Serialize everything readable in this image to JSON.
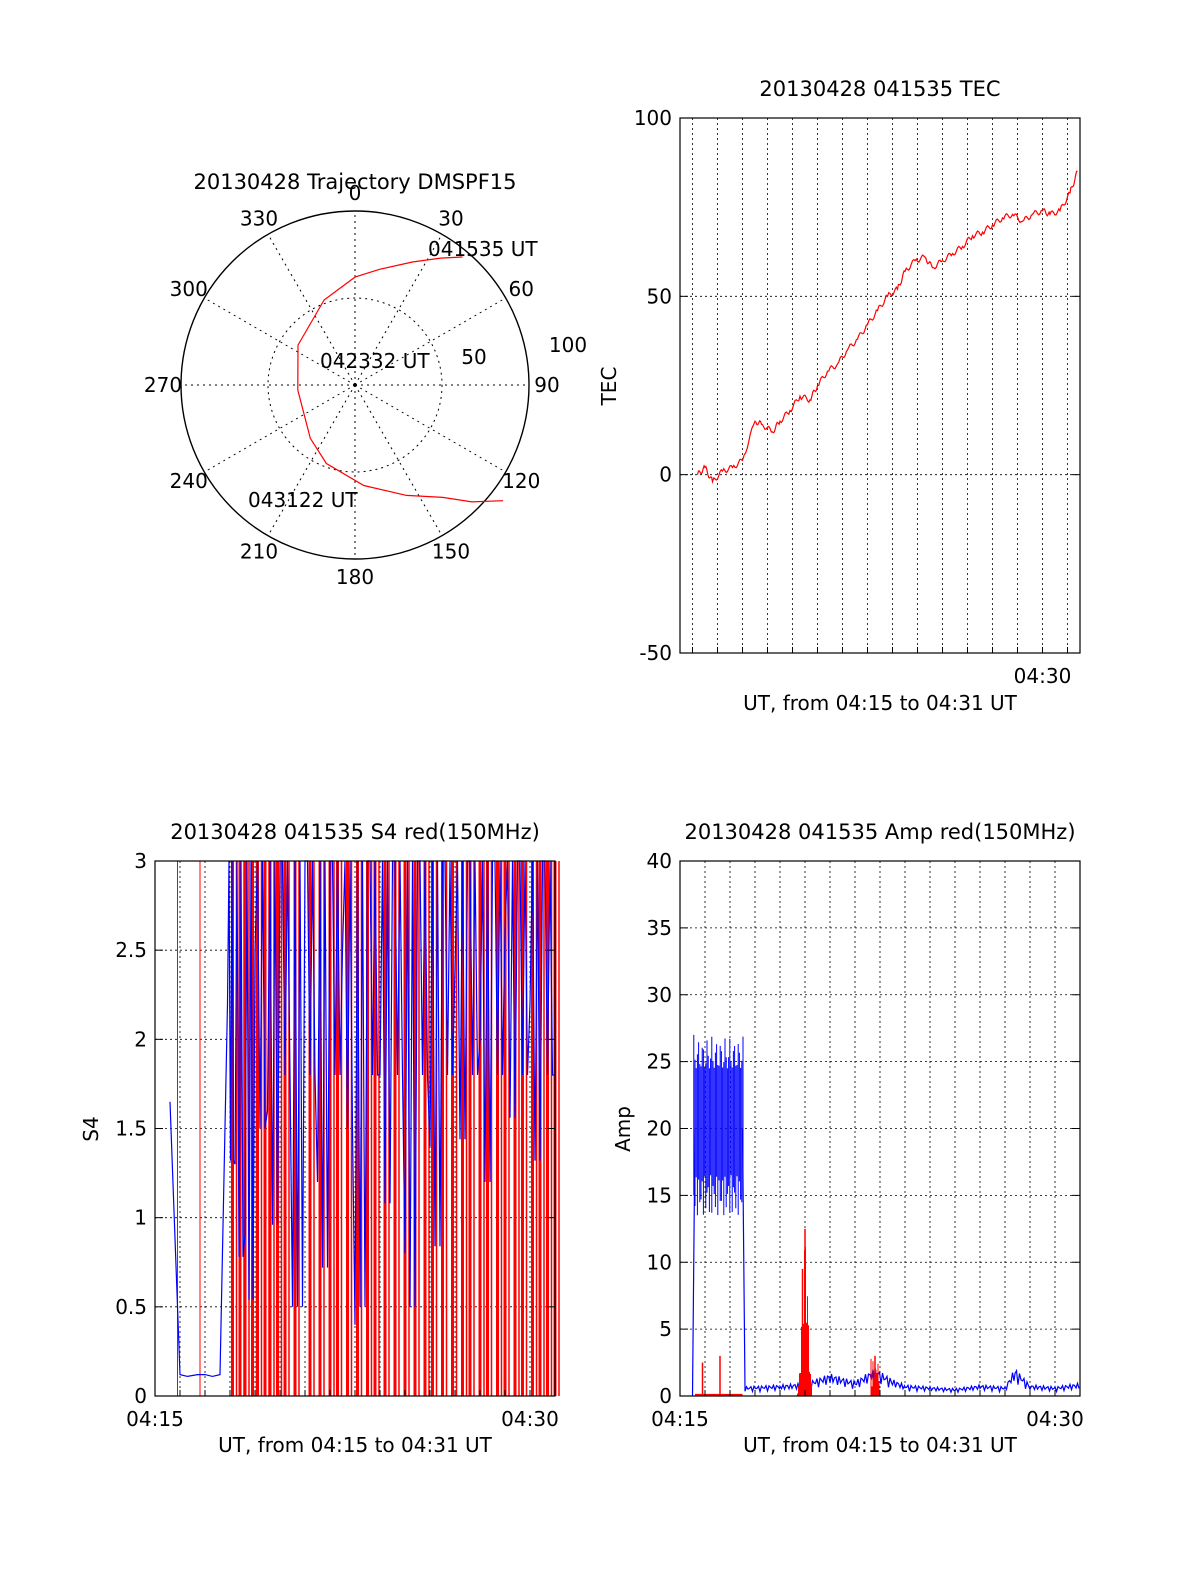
{
  "colors": {
    "primary_series": "#ff0000",
    "secondary_series": "#0000ff",
    "grid": "#000000",
    "background": "#ffffff"
  },
  "chart_data": [
    {
      "type": "polar",
      "title": "20130428 Trajectory DMSPF15",
      "angular_ticks": [
        "0",
        "30",
        "60",
        "90",
        "120",
        "150",
        "180",
        "210",
        "240",
        "270",
        "300",
        "330"
      ],
      "radial_ticks": [
        "50",
        "100"
      ],
      "rlim": [
        0,
        100
      ],
      "trajectory": {
        "azimuth_deg": [
          40,
          34,
          25,
          12,
          0,
          -20,
          -55,
          -95,
          -140,
          -160,
          -185,
          -205,
          -218,
          -225,
          -232
        ],
        "zenith_deg": [
          96,
          88,
          78,
          68,
          62,
          52,
          40,
          33,
          40,
          48,
          58,
          70,
          82,
          95,
          108
        ]
      },
      "annotations": [
        "041535 UT",
        "042332 UT",
        "043122 UT"
      ],
      "grid": true
    },
    {
      "type": "line",
      "title": "20130428 041535 TEC",
      "xlabel": "UT, from 04:15 to 04:31 UT",
      "ylabel": "TEC",
      "xlim_min": [
        15.5,
        31.5
      ],
      "ylim": [
        -50,
        100
      ],
      "yticks": [
        "-50",
        "0",
        "50",
        "100"
      ],
      "xtick_labels": [
        {
          "minute": 30,
          "label": "04:30"
        }
      ],
      "grid": true,
      "series": [
        {
          "x_min": [
            16.2,
            16.5,
            16.8,
            17.2,
            17.6,
            18.0,
            18.5,
            18.8,
            19.2,
            19.5,
            19.9,
            20.3,
            20.7,
            21.0,
            21.4,
            21.8,
            22.2,
            22.6,
            23.0,
            23.4,
            23.8,
            24.2,
            24.5,
            24.9,
            25.3,
            25.6,
            26.0,
            26.4,
            26.8,
            27.2,
            27.6,
            28.0,
            28.4,
            28.8,
            29.2,
            29.6,
            30.0,
            30.3,
            30.7,
            31.1,
            31.4
          ],
          "y": [
            0,
            2,
            -2,
            1,
            2,
            4,
            15,
            14,
            12,
            15,
            18,
            22,
            21,
            25,
            29,
            31,
            35,
            38,
            42,
            46,
            50,
            52,
            57,
            60,
            61,
            58,
            60,
            62,
            64,
            67,
            68,
            70,
            72,
            73,
            71,
            73,
            74,
            73,
            74,
            79,
            85
          ]
        }
      ]
    },
    {
      "type": "line",
      "title": "20130428 041535 S4 red(150MHz)",
      "xlabel": "UT, from 04:15 to 04:31 UT",
      "ylabel": "S4",
      "xlim_min": [
        15,
        31
      ],
      "ylim": [
        0,
        3
      ],
      "yticks": [
        "0",
        "0.5",
        "1",
        "1.5",
        "2",
        "2.5",
        "3"
      ],
      "xtick_labels": [
        {
          "minute": 15,
          "label": "04:15"
        },
        {
          "minute": 30,
          "label": "04:30"
        }
      ],
      "grid": true,
      "series": [
        {
          "x_min": [
            15.6,
            16.0,
            16.3,
            16.7,
            17.0,
            17.3,
            17.6,
            17.9,
            18.2,
            18.6,
            19.0,
            19.5,
            20.0,
            20.5,
            21.0,
            21.5,
            22.0,
            22.5,
            23.0,
            23.5,
            24.0,
            24.5,
            25.0,
            25.5,
            26.0,
            26.5,
            27.0,
            27.5,
            28.0,
            28.5,
            29.0,
            29.5,
            30.0,
            30.5,
            31.0
          ],
          "y": [
            1.65,
            0.12,
            0.11,
            0.12,
            0.12,
            0.11,
            0.12,
            2.2,
            1.3,
            0.9,
            2.5,
            1.6,
            3.0,
            0.5,
            3.0,
            1.2,
            3.0,
            2.5,
            0.4,
            3.0,
            1.8,
            3.0,
            0.8,
            3.0,
            1.4,
            3.0,
            2.4,
            3.0,
            2.0,
            3.0,
            2.6,
            3.0,
            2.2,
            3.0,
            1.8
          ]
        },
        {
          "spikes_x_min": [
            15.9,
            16.8,
            18.1,
            18.4,
            18.6,
            18.9,
            19.1,
            19.4,
            19.6,
            19.9,
            20.2,
            20.6,
            21.2,
            21.6,
            22.0,
            22.3,
            22.7,
            23.1,
            23.5,
            23.8,
            24.2,
            24.6,
            25.0,
            25.4,
            25.8,
            26.1,
            26.5,
            26.9,
            27.3,
            27.6,
            28.0,
            28.3,
            28.7,
            29.0,
            29.4,
            29.7,
            30.1,
            30.4,
            30.7,
            31.0
          ]
        }
      ]
    },
    {
      "type": "line",
      "title": "20130428 041535 Amp red(150MHz)",
      "xlabel": "UT, from 04:15 to 04:31 UT",
      "ylabel": "Amp",
      "xlim_min": [
        15,
        31
      ],
      "ylim": [
        0,
        40
      ],
      "yticks": [
        "0",
        "5",
        "10",
        "15",
        "20",
        "25",
        "30",
        "35",
        "40"
      ],
      "xtick_labels": [
        {
          "minute": 15,
          "label": "04:15"
        },
        {
          "minute": 30,
          "label": "04:30"
        }
      ],
      "grid": true,
      "series": [
        {
          "x_min": [
            15.5,
            15.6,
            17.5,
            17.6,
            19.0,
            20.0,
            21.0,
            22.0,
            22.8,
            23.5,
            24.0,
            25.0,
            26.0,
            27.0,
            28.0,
            28.4,
            29.0,
            30.0,
            31.0
          ],
          "y": [
            0,
            20.5,
            20.5,
            0.5,
            0.6,
            0.7,
            1.2,
            0.8,
            1.5,
            0.9,
            0.6,
            0.5,
            0.4,
            0.6,
            0.5,
            1.5,
            0.6,
            0.5,
            0.7
          ],
          "band": {
            "x_min": [
              15.55,
              17.55
            ],
            "y_low": 15,
            "y_high": 27
          }
        },
        {
          "x_min": [
            15.6,
            17.5,
            18.6,
            19.5,
            19.8,
            20.0,
            20.2,
            22.5,
            22.8,
            23.0
          ],
          "y": [
            0,
            0.1,
            0.2,
            0.3,
            4.0,
            12.5,
            0.3,
            0.3,
            3.2,
            0.4
          ],
          "spikes": [
            {
              "x": 15.9,
              "y": 2.5
            },
            {
              "x": 16.6,
              "y": 3.0
            },
            {
              "x": 20.0,
              "y": 12.5
            },
            {
              "x": 19.9,
              "y": 9.5
            },
            {
              "x": 22.8,
              "y": 3.0
            }
          ]
        }
      ]
    }
  ]
}
